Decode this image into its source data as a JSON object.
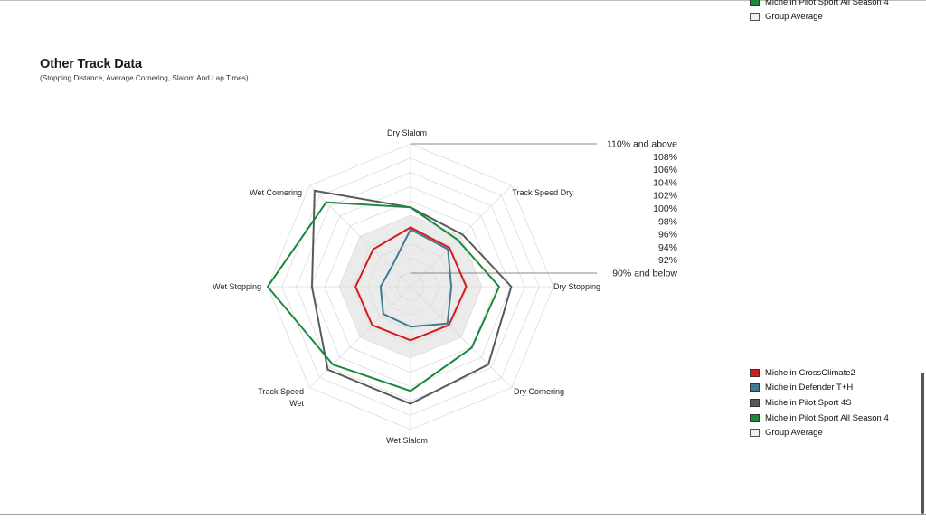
{
  "section": {
    "title": "Other Track Data",
    "subtitle": "(Stopping Distance, Average Cornering, Slalom And Lap Times)"
  },
  "legend_top": [
    {
      "label": "Michelin Pilot Sport All Season 4",
      "color": "#1a8a3a"
    },
    {
      "label": "Group Average",
      "color": "#f0f0f0"
    }
  ],
  "legend": [
    {
      "label": "Michelin CrossClimate2",
      "color": "#d7191c"
    },
    {
      "label": "Michelin Defender T+H",
      "color": "#3f7c93"
    },
    {
      "label": "Michelin Pilot Sport 4S",
      "color": "#5a5a5a"
    },
    {
      "label": "Michelin Pilot Sport All Season 4",
      "color": "#1a8a3a"
    },
    {
      "label": "Group Average",
      "color": "#f0f0f0"
    }
  ],
  "chart_data": {
    "type": "radar",
    "axes": [
      "Dry Slalom",
      "Track Speed Dry",
      "Dry Stopping",
      "Dry Cornering",
      "Wet Slalom",
      "Track Speed Wet",
      "Wet Stopping",
      "Wet Cornering"
    ],
    "axis_display": [
      [
        "Dry Slalom"
      ],
      [
        "Track Speed Dry"
      ],
      [
        "Dry Stopping"
      ],
      [
        "Dry Cornering"
      ],
      [
        "Wet Slalom"
      ],
      [
        "Track Speed",
        "Wet"
      ],
      [
        "Wet Stopping"
      ],
      [
        "Wet Cornering"
      ]
    ],
    "scale_labels": [
      "90% and below",
      "92%",
      "94%",
      "96%",
      "98%",
      "100%",
      "102%",
      "104%",
      "106%",
      "108%",
      "110% and above"
    ],
    "range": [
      90,
      110
    ],
    "group_average": 100,
    "series": [
      {
        "name": "Michelin CrossClimate2",
        "color": "#d7191c",
        "values": [
          98.3,
          97.7,
          97.8,
          97.6,
          97.5,
          97.6,
          97.7,
          97.4
        ]
      },
      {
        "name": "Michelin Defender T+H",
        "color": "#3f7c93",
        "values": [
          98.0,
          97.4,
          95.7,
          97.3,
          95.6,
          95.4,
          94.2,
          93.8
        ]
      },
      {
        "name": "Michelin Pilot Sport 4S",
        "color": "#5a5a5a",
        "values": [
          101.1,
          100.3,
          104.1,
          105.4,
          106.4,
          106.4,
          103.8,
          109.0
        ]
      },
      {
        "name": "Michelin Pilot Sport All Season 4",
        "color": "#1a8a3a",
        "values": [
          101.1,
          99.3,
          102.4,
          102.1,
          104.6,
          105.4,
          110.0,
          106.7
        ]
      }
    ]
  }
}
